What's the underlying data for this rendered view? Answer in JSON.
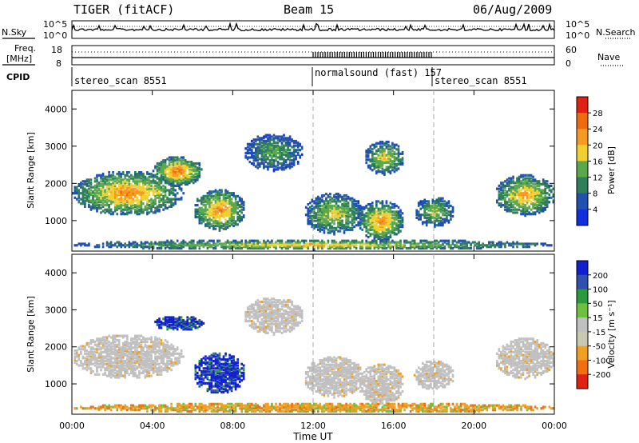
{
  "header": {
    "radar_title": "TIGER (fitACF)",
    "beam": "Beam 15",
    "date": "06/Aug/2009"
  },
  "top_panels": {
    "nsky_label": "N.Sky",
    "nsearch_label": "N.Search",
    "noise_ticks": [
      "10^5",
      "10^0"
    ],
    "freq_label_1": "Freq.",
    "freq_label_2": "[MHz]",
    "freq_ticks": [
      "18",
      "8"
    ],
    "nave_label": "Nave",
    "nave_ticks": [
      "60",
      "0"
    ],
    "cpid_label": "CPID"
  },
  "cpid_segments": [
    {
      "label": "stereo_scan 8551",
      "start_hour": 0
    },
    {
      "label": "normalsound (fast) 157",
      "start_hour": 12
    },
    {
      "label": "stereo_scan 8551",
      "start_hour": 18
    }
  ],
  "colors": {
    "power_scale": [
      "#1030e0",
      "#2050b0",
      "#2e7e5a",
      "#5aa84a",
      "#f0d030",
      "#f59a20",
      "#f06a10",
      "#e02010"
    ],
    "velocity_scale": [
      "#1020d0",
      "#3050b0",
      "#2a9a3a",
      "#70c040",
      "#c0c0c0",
      "#c8c8b0",
      "#f0a020",
      "#f07010",
      "#e02010"
    ],
    "ground_scatter": "#c0c0c0"
  },
  "chart_data": [
    {
      "type": "heatmap",
      "title": "Power",
      "xlabel": "Time UT",
      "ylabel": "Slant Range [km]",
      "xlim": [
        0,
        24
      ],
      "ylim": [
        180,
        4500
      ],
      "x_ticks": [
        "00:00",
        "04:00",
        "08:00",
        "12:00",
        "16:00",
        "20:00",
        "00:00"
      ],
      "y_ticks": [
        "1000",
        "2000",
        "3000",
        "4000"
      ],
      "colorbar_label": "Power [dB]",
      "colorbar_ticks": [
        "28",
        "24",
        "20",
        "16",
        "12",
        "8",
        "4"
      ],
      "colorbar_range": [
        0,
        32
      ],
      "scatter_regions": [
        {
          "t": [
            0,
            5.5
          ],
          "r": [
            1100,
            2300
          ],
          "peak": 26
        },
        {
          "t": [
            4,
            6.5
          ],
          "r": [
            1900,
            2700
          ],
          "peak": 28
        },
        {
          "t": [
            6.0,
            8.6
          ],
          "r": [
            700,
            1800
          ],
          "peak": 26
        },
        {
          "t": [
            8.5,
            11.5
          ],
          "r": [
            2300,
            3300
          ],
          "peak": 14
        },
        {
          "t": [
            11.5,
            14.5
          ],
          "r": [
            600,
            1700
          ],
          "peak": 20
        },
        {
          "t": [
            14.2,
            16.5
          ],
          "r": [
            400,
            1500
          ],
          "peak": 26
        },
        {
          "t": [
            14.5,
            16.5
          ],
          "r": [
            2200,
            3100
          ],
          "peak": 20
        },
        {
          "t": [
            17,
            19
          ],
          "r": [
            800,
            1600
          ],
          "peak": 18
        },
        {
          "t": [
            21,
            24
          ],
          "r": [
            1100,
            2200
          ],
          "peak": 24
        },
        {
          "t": [
            0,
            24
          ],
          "r": [
            180,
            450
          ],
          "peak": 22
        }
      ]
    },
    {
      "type": "heatmap",
      "title": "Velocity",
      "xlabel": "Time UT",
      "ylabel": "Slant Range [km]",
      "xlim": [
        0,
        24
      ],
      "ylim": [
        180,
        4500
      ],
      "x_ticks": [
        "00:00",
        "04:00",
        "08:00",
        "12:00",
        "16:00",
        "20:00",
        "00:00"
      ],
      "y_ticks": [
        "1000",
        "2000",
        "3000",
        "4000"
      ],
      "colorbar_label": "Velocity [m s⁻¹]",
      "colorbar_ticks": [
        "200",
        "100",
        "50",
        "15",
        "-15",
        "-50",
        "-100",
        "-200"
      ],
      "colorbar_range": [
        -250,
        250
      ],
      "scatter_regions": [
        {
          "t": [
            0,
            5.5
          ],
          "r": [
            1100,
            2300
          ],
          "v": 0
        },
        {
          "t": [
            4,
            6.5
          ],
          "r": [
            2400,
            2800
          ],
          "v": 210
        },
        {
          "t": [
            6.0,
            8.6
          ],
          "r": [
            700,
            1800
          ],
          "v": 220
        },
        {
          "t": [
            8.5,
            11.5
          ],
          "r": [
            2300,
            3300
          ],
          "v": 0
        },
        {
          "t": [
            11.5,
            14.5
          ],
          "r": [
            600,
            1700
          ],
          "v": 0
        },
        {
          "t": [
            14.2,
            16.5
          ],
          "r": [
            400,
            1500
          ],
          "v": 0
        },
        {
          "t": [
            17,
            19
          ],
          "r": [
            800,
            1600
          ],
          "v": 0
        },
        {
          "t": [
            21,
            24
          ],
          "r": [
            1100,
            2200
          ],
          "v": 0
        },
        {
          "t": [
            0,
            24
          ],
          "r": [
            180,
            450
          ],
          "v": -60
        }
      ]
    }
  ]
}
